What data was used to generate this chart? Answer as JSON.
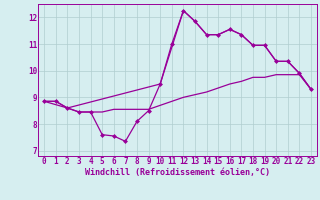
{
  "background_color": "#d6eef0",
  "grid_color": "#b0cdd0",
  "line_color": "#990099",
  "xlabel": "Windchill (Refroidissement éolien,°C)",
  "xlim": [
    -0.5,
    23.5
  ],
  "ylim": [
    6.8,
    12.5
  ],
  "yticks": [
    7,
    8,
    9,
    10,
    11,
    12
  ],
  "xticks": [
    0,
    1,
    2,
    3,
    4,
    5,
    6,
    7,
    8,
    9,
    10,
    11,
    12,
    13,
    14,
    15,
    16,
    17,
    18,
    19,
    20,
    21,
    22,
    23
  ],
  "series1_x": [
    0,
    1,
    2,
    3,
    4,
    5,
    6,
    7,
    8,
    9,
    10,
    11,
    12,
    13,
    14,
    15,
    16,
    17,
    18,
    19,
    20,
    21,
    22,
    23
  ],
  "series1_y": [
    8.85,
    8.85,
    8.6,
    8.45,
    8.45,
    7.6,
    7.55,
    7.35,
    8.1,
    8.5,
    9.5,
    11.0,
    12.25,
    11.85,
    11.35,
    11.35,
    11.55,
    11.35,
    10.95,
    10.95,
    10.35,
    10.35,
    9.9,
    9.3
  ],
  "series2_x": [
    0,
    1,
    2,
    3,
    4,
    5,
    6,
    7,
    8,
    9,
    10,
    11,
    12,
    13,
    14,
    15,
    16,
    17,
    18,
    19,
    20,
    21,
    22,
    23
  ],
  "series2_y": [
    8.85,
    8.85,
    8.6,
    8.45,
    8.45,
    8.45,
    8.55,
    8.55,
    8.55,
    8.55,
    8.7,
    8.85,
    9.0,
    9.1,
    9.2,
    9.35,
    9.5,
    9.6,
    9.75,
    9.75,
    9.85,
    9.85,
    9.85,
    9.3
  ],
  "series3_x": [
    0,
    2,
    10,
    12,
    13,
    14,
    15,
    16,
    17,
    18,
    19,
    20,
    21,
    22,
    23
  ],
  "series3_y": [
    8.85,
    8.6,
    9.5,
    12.25,
    11.85,
    11.35,
    11.35,
    11.55,
    11.35,
    10.95,
    10.95,
    10.35,
    10.35,
    9.9,
    9.3
  ],
  "marker": "D",
  "markersize": 2.5,
  "linewidth": 0.9,
  "tick_fontsize": 5.5,
  "xlabel_fontsize": 6
}
